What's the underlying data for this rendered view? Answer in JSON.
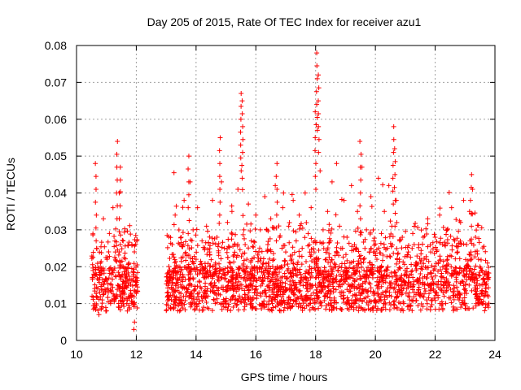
{
  "chart_data": {
    "type": "scatter",
    "title": "Day 205 of 2015, Rate Of TEC Index for receiver azu1",
    "xlabel": "GPS time / hours",
    "ylabel": "ROTI / TECUs",
    "xlim": [
      10,
      24
    ],
    "ylim": [
      0,
      0.08
    ],
    "xticks": [
      10,
      12,
      14,
      16,
      18,
      20,
      22,
      24
    ],
    "yticks": [
      0,
      0.01,
      0.02,
      0.03,
      0.04,
      0.05,
      0.06,
      0.07,
      0.08
    ],
    "xtick_labels": [
      "10",
      "12",
      "14",
      "16",
      "18",
      "20",
      "22",
      "24"
    ],
    "ytick_labels": [
      "0",
      "0.01",
      "0.02",
      "0.03",
      "0.04",
      "0.05",
      "0.06",
      "0.07",
      "0.08"
    ],
    "grid": true,
    "marker": "plus",
    "color": "#ff0000",
    "series": [
      {
        "name": "ROTI",
        "segments": [
          [
            10.5,
            12.05
          ],
          [
            13.0,
            23.8
          ]
        ],
        "peaks": [
          {
            "x": 10.65,
            "y": 0.048
          },
          {
            "x": 11.35,
            "y": 0.054
          },
          {
            "x": 11.45,
            "y": 0.047
          },
          {
            "x": 13.75,
            "y": 0.05
          },
          {
            "x": 14.8,
            "y": 0.055
          },
          {
            "x": 15.5,
            "y": 0.067
          },
          {
            "x": 15.55,
            "y": 0.065
          },
          {
            "x": 16.7,
            "y": 0.048
          },
          {
            "x": 18.05,
            "y": 0.078
          },
          {
            "x": 18.1,
            "y": 0.072
          },
          {
            "x": 18.0,
            "y": 0.062
          },
          {
            "x": 19.5,
            "y": 0.054
          },
          {
            "x": 20.6,
            "y": 0.058
          },
          {
            "x": 20.65,
            "y": 0.052
          },
          {
            "x": 23.2,
            "y": 0.045
          }
        ],
        "points": [
          [
            10.52,
            0.012
          ],
          [
            10.58,
            0.018
          ],
          [
            10.63,
            0.009
          ],
          [
            10.67,
            0.025
          ],
          [
            10.71,
            0.014
          ],
          [
            10.75,
            0.007
          ],
          [
            10.8,
            0.021
          ],
          [
            10.86,
            0.011
          ],
          [
            10.9,
            0.033
          ],
          [
            10.94,
            0.016
          ],
          [
            10.98,
            0.008
          ],
          [
            11.02,
            0.022
          ],
          [
            11.06,
            0.013
          ],
          [
            11.1,
            0.029
          ],
          [
            11.14,
            0.01
          ],
          [
            11.18,
            0.019
          ],
          [
            11.22,
            0.036
          ],
          [
            11.26,
            0.012
          ],
          [
            11.3,
            0.024
          ],
          [
            11.38,
            0.015
          ],
          [
            11.42,
            0.009
          ],
          [
            11.48,
            0.02
          ],
          [
            11.52,
            0.013
          ],
          [
            11.56,
            0.027
          ],
          [
            11.6,
            0.011
          ],
          [
            11.64,
            0.017
          ],
          [
            11.7,
            0.008
          ],
          [
            11.75,
            0.021
          ],
          [
            11.8,
            0.012
          ],
          [
            11.85,
            0.026
          ],
          [
            11.9,
            0.01
          ],
          [
            11.94,
            0.005
          ],
          [
            11.98,
            0.015
          ],
          [
            12.02,
            0.027
          ],
          [
            11.92,
            0.003
          ],
          [
            13.05,
            0.012
          ],
          [
            13.1,
            0.018
          ],
          [
            13.15,
            0.009
          ],
          [
            13.2,
            0.026
          ],
          [
            13.25,
            0.014
          ],
          [
            13.3,
            0.034
          ],
          [
            13.35,
            0.011
          ],
          [
            13.4,
            0.02
          ],
          [
            13.45,
            0.008
          ],
          [
            13.5,
            0.028
          ],
          [
            13.55,
            0.016
          ],
          [
            13.6,
            0.038
          ],
          [
            13.65,
            0.012
          ],
          [
            13.7,
            0.023
          ],
          [
            13.8,
            0.043
          ],
          [
            13.85,
            0.015
          ],
          [
            13.9,
            0.03
          ],
          [
            13.95,
            0.01
          ],
          [
            14.0,
            0.022
          ],
          [
            14.05,
            0.036
          ],
          [
            14.1,
            0.013
          ],
          [
            14.15,
            0.019
          ],
          [
            14.2,
            0.027
          ],
          [
            14.25,
            0.009
          ],
          [
            14.3,
            0.017
          ],
          [
            14.35,
            0.031
          ],
          [
            14.4,
            0.012
          ],
          [
            14.45,
            0.024
          ],
          [
            14.5,
            0.015
          ],
          [
            14.55,
            0.038
          ],
          [
            14.6,
            0.011
          ],
          [
            14.65,
            0.021
          ],
          [
            14.7,
            0.028
          ],
          [
            14.75,
            0.014
          ],
          [
            14.85,
            0.043
          ],
          [
            14.9,
            0.018
          ],
          [
            14.95,
            0.025
          ],
          [
            15.0,
            0.01
          ],
          [
            15.05,
            0.032
          ],
          [
            15.1,
            0.016
          ],
          [
            15.15,
            0.021
          ],
          [
            15.2,
            0.035
          ],
          [
            15.25,
            0.012
          ],
          [
            15.3,
            0.026
          ],
          [
            15.35,
            0.018
          ],
          [
            15.4,
            0.041
          ],
          [
            15.45,
            0.014
          ],
          [
            15.6,
            0.03
          ],
          [
            15.65,
            0.011
          ],
          [
            15.7,
            0.022
          ],
          [
            15.75,
            0.037
          ],
          [
            15.8,
            0.015
          ],
          [
            15.85,
            0.027
          ],
          [
            15.9,
            0.009
          ],
          [
            15.95,
            0.02
          ],
          [
            16.0,
            0.034
          ],
          [
            16.05,
            0.013
          ],
          [
            16.1,
            0.024
          ],
          [
            16.15,
            0.03
          ],
          [
            16.2,
            0.016
          ],
          [
            16.25,
            0.021
          ],
          [
            16.3,
            0.039
          ],
          [
            16.35,
            0.012
          ],
          [
            16.4,
            0.026
          ],
          [
            16.45,
            0.018
          ],
          [
            16.5,
            0.033
          ],
          [
            16.55,
            0.01
          ],
          [
            16.6,
            0.022
          ],
          [
            16.65,
            0.042
          ],
          [
            16.75,
            0.015
          ],
          [
            16.8,
            0.028
          ],
          [
            16.85,
            0.02
          ],
          [
            16.9,
            0.036
          ],
          [
            16.95,
            0.013
          ],
          [
            17.0,
            0.024
          ],
          [
            17.05,
            0.017
          ],
          [
            17.1,
            0.031
          ],
          [
            17.15,
            0.011
          ],
          [
            17.2,
            0.022
          ],
          [
            17.25,
            0.038
          ],
          [
            17.3,
            0.015
          ],
          [
            17.35,
            0.027
          ],
          [
            17.4,
            0.019
          ],
          [
            17.45,
            0.034
          ],
          [
            17.5,
            0.012
          ],
          [
            17.55,
            0.025
          ],
          [
            17.6,
            0.017
          ],
          [
            17.65,
            0.04
          ],
          [
            17.7,
            0.014
          ],
          [
            17.75,
            0.029
          ],
          [
            17.8,
            0.02
          ],
          [
            17.85,
            0.036
          ],
          [
            17.9,
            0.011
          ],
          [
            17.95,
            0.024
          ],
          [
            18.15,
            0.046
          ],
          [
            18.2,
            0.018
          ],
          [
            18.25,
            0.03
          ],
          [
            18.3,
            0.012
          ],
          [
            18.35,
            0.022
          ],
          [
            18.4,
            0.035
          ],
          [
            18.45,
            0.016
          ],
          [
            18.5,
            0.027
          ],
          [
            18.55,
            0.043
          ],
          [
            18.6,
            0.014
          ],
          [
            18.65,
            0.023
          ],
          [
            18.7,
            0.048
          ],
          [
            18.75,
            0.019
          ],
          [
            18.8,
            0.031
          ],
          [
            18.85,
            0.012
          ],
          [
            18.9,
            0.025
          ],
          [
            18.95,
            0.038
          ],
          [
            19.0,
            0.017
          ],
          [
            19.05,
            0.028
          ],
          [
            19.1,
            0.011
          ],
          [
            19.15,
            0.021
          ],
          [
            19.2,
            0.042
          ],
          [
            19.25,
            0.015
          ],
          [
            19.3,
            0.026
          ],
          [
            19.35,
            0.019
          ],
          [
            19.4,
            0.035
          ],
          [
            19.45,
            0.013
          ],
          [
            19.55,
            0.047
          ],
          [
            19.6,
            0.022
          ],
          [
            19.65,
            0.016
          ],
          [
            19.7,
            0.03
          ],
          [
            19.75,
            0.012
          ],
          [
            19.8,
            0.024
          ],
          [
            19.85,
            0.039
          ],
          [
            19.9,
            0.018
          ],
          [
            19.95,
            0.027
          ],
          [
            20.0,
            0.011
          ],
          [
            20.05,
            0.022
          ],
          [
            20.1,
            0.044
          ],
          [
            20.15,
            0.016
          ],
          [
            20.2,
            0.029
          ],
          [
            20.25,
            0.013
          ],
          [
            20.3,
            0.035
          ],
          [
            20.35,
            0.019
          ],
          [
            20.4,
            0.025
          ],
          [
            20.45,
            0.042
          ],
          [
            20.5,
            0.015
          ],
          [
            20.55,
            0.031
          ],
          [
            20.7,
            0.038
          ],
          [
            20.75,
            0.012
          ],
          [
            20.8,
            0.022
          ],
          [
            20.85,
            0.017
          ],
          [
            20.9,
            0.028
          ],
          [
            20.95,
            0.01
          ],
          [
            21.0,
            0.019
          ],
          [
            21.05,
            0.014
          ],
          [
            21.1,
            0.024
          ],
          [
            21.15,
            0.011
          ],
          [
            21.2,
            0.018
          ],
          [
            21.25,
            0.029
          ],
          [
            21.3,
            0.013
          ],
          [
            21.35,
            0.021
          ],
          [
            21.4,
            0.016
          ],
          [
            21.45,
            0.026
          ],
          [
            21.5,
            0.012
          ],
          [
            21.55,
            0.02
          ],
          [
            21.6,
            0.028
          ],
          [
            21.65,
            0.014
          ],
          [
            21.7,
            0.022
          ],
          [
            21.75,
            0.033
          ],
          [
            21.8,
            0.015
          ],
          [
            21.85,
            0.024
          ],
          [
            21.9,
            0.011
          ],
          [
            21.95,
            0.019
          ],
          [
            22.0,
            0.028
          ],
          [
            22.05,
            0.013
          ],
          [
            22.1,
            0.021
          ],
          [
            22.15,
            0.034
          ],
          [
            22.2,
            0.016
          ],
          [
            22.25,
            0.026
          ],
          [
            22.3,
            0.012
          ],
          [
            22.35,
            0.02
          ],
          [
            22.4,
            0.03
          ],
          [
            22.45,
            0.015
          ],
          [
            22.5,
            0.023
          ],
          [
            22.55,
            0.036
          ],
          [
            22.6,
            0.013
          ],
          [
            22.65,
            0.027
          ],
          [
            22.7,
            0.018
          ],
          [
            22.75,
            0.024
          ],
          [
            22.8,
            0.011
          ],
          [
            22.85,
            0.032
          ],
          [
            22.9,
            0.016
          ],
          [
            22.95,
            0.038
          ],
          [
            23.0,
            0.014
          ],
          [
            23.05,
            0.026
          ],
          [
            23.1,
            0.02
          ],
          [
            23.15,
            0.035
          ],
          [
            23.25,
            0.041
          ],
          [
            23.3,
            0.017
          ],
          [
            23.35,
            0.028
          ],
          [
            23.4,
            0.012
          ],
          [
            23.45,
            0.022
          ],
          [
            23.5,
            0.015
          ],
          [
            23.55,
            0.019
          ],
          [
            23.6,
            0.01
          ],
          [
            23.65,
            0.018
          ],
          [
            23.7,
            0.013
          ],
          [
            23.75,
            0.021
          ],
          [
            23.78,
            0.009
          ]
        ]
      }
    ]
  }
}
